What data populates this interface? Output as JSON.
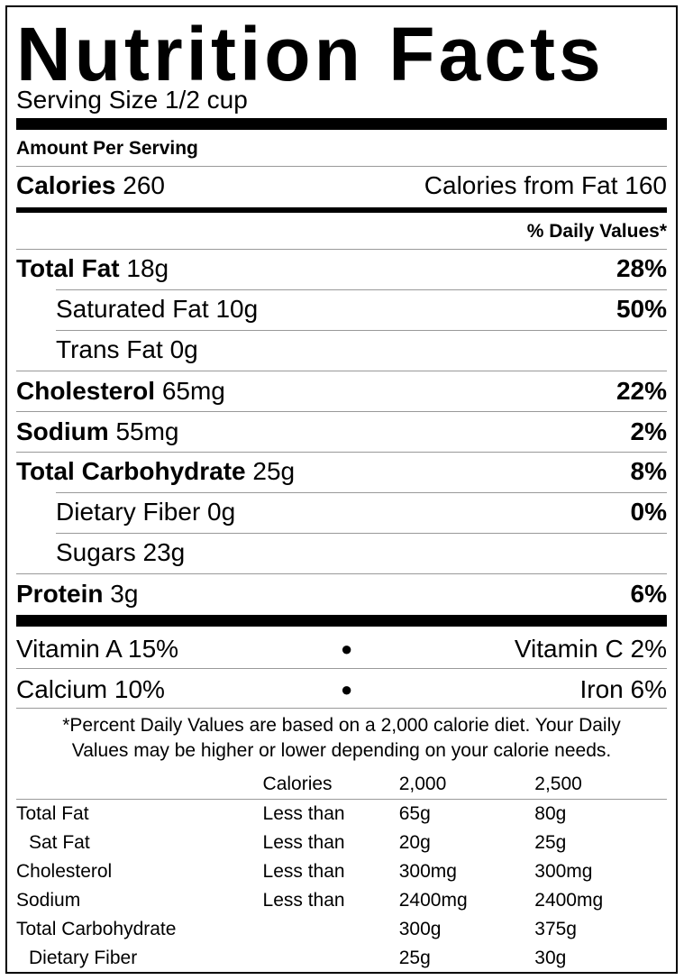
{
  "title": "Nutrition Facts",
  "serving_size": "Serving Size 1/2 cup",
  "amount_per_serving": "Amount Per Serving",
  "calories": {
    "label": "Calories",
    "value": "260",
    "from_fat": "Calories from Fat 160"
  },
  "daily_values_header": "% Daily Values*",
  "nutrients": [
    {
      "label": "Total Fat",
      "amount": "18g",
      "dv": "28%"
    },
    {
      "label": "Saturated Fat",
      "amount": "10g",
      "dv": "50%"
    },
    {
      "label": "Trans Fat",
      "amount": "0g",
      "dv": ""
    },
    {
      "label": "Cholesterol",
      "amount": "65mg",
      "dv": "22%"
    },
    {
      "label": "Sodium",
      "amount": "55mg",
      "dv": "2%"
    },
    {
      "label": "Total Carbohydrate",
      "amount": "25g",
      "dv": "8%"
    },
    {
      "label": "Dietary Fiber",
      "amount": "0g",
      "dv": "0%"
    },
    {
      "label": "Sugars",
      "amount": "23g",
      "dv": ""
    },
    {
      "label": "Protein",
      "amount": "3g",
      "dv": "6%"
    }
  ],
  "vitamins": [
    {
      "left": "Vitamin A 15%",
      "bullet": "●",
      "right": "Vitamin C 2%"
    },
    {
      "left": "Calcium 10%",
      "bullet": "●",
      "right": "Iron 6%"
    }
  ],
  "footnote": {
    "line1": "*Percent Daily Values are based on a 2,000 calorie diet. Your Daily",
    "line2": "Values may be higher or lower depending on your calorie needs."
  },
  "dv_table": {
    "header": [
      "",
      "Calories",
      "2,000",
      "2,500"
    ],
    "rows": [
      [
        "Total Fat",
        "Less than",
        "65g",
        "80g"
      ],
      [
        "Sat Fat",
        "Less than",
        "20g",
        "25g"
      ],
      [
        "Cholesterol",
        "Less than",
        "300mg",
        "300mg"
      ],
      [
        "Sodium",
        "Less than",
        "2400mg",
        "2400mg"
      ],
      [
        "Total Carbohydrate",
        "",
        "300g",
        "375g"
      ],
      [
        "Dietary Fiber",
        "",
        "25g",
        "30g"
      ]
    ]
  }
}
